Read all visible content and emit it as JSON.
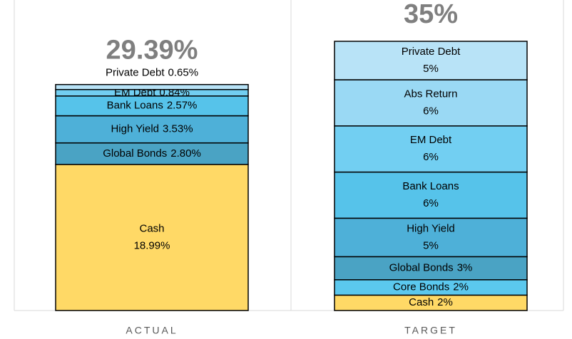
{
  "chart_data": {
    "type": "stacked_bar",
    "categories": [
      "ACTUAL",
      "TARGET"
    ],
    "series": [
      {
        "name": "Cash",
        "color": "#ffd966",
        "values": [
          18.99,
          2
        ],
        "value_labels": [
          "18.99%",
          "2%"
        ]
      },
      {
        "name": "Core Bonds",
        "color": "#5bc8ee",
        "values": [
          null,
          2
        ],
        "value_labels": [
          null,
          "2%"
        ]
      },
      {
        "name": "Global Bonds",
        "color": "#4aa3c4",
        "values": [
          2.8,
          3
        ],
        "value_labels": [
          "2.80%",
          "3%"
        ]
      },
      {
        "name": "High Yield",
        "color": "#4eb0d8",
        "values": [
          3.53,
          5
        ],
        "value_labels": [
          "3.53%",
          "5%"
        ]
      },
      {
        "name": "Bank Loans",
        "color": "#56c3ea",
        "values": [
          2.57,
          6
        ],
        "value_labels": [
          "2.57%",
          "6%"
        ]
      },
      {
        "name": "EM Debt",
        "color": "#72cff2",
        "values": [
          0.84,
          6
        ],
        "value_labels": [
          "0.84%",
          "6%"
        ]
      },
      {
        "name": "Abs Return",
        "color": "#9ad9f4",
        "values": [
          null,
          6
        ],
        "value_labels": [
          null,
          "6%"
        ]
      },
      {
        "name": "Private Debt",
        "color": "#b8e3f7",
        "values": [
          0.65,
          5
        ],
        "value_labels": [
          "0.65%",
          "5%"
        ]
      }
    ],
    "totals": [
      29.39,
      35
    ],
    "total_labels": [
      "29.39%",
      "35%"
    ]
  }
}
